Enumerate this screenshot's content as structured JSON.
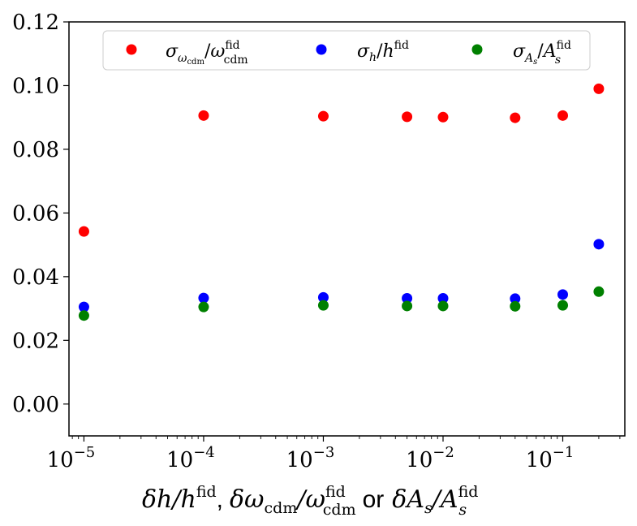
{
  "chart_data": {
    "type": "scatter",
    "title": "",
    "xlabel": "δh/h^fid, δω_cdm/ω_cdm^fid or δA_s/A_s^fid",
    "ylabel": "",
    "xscale": "log",
    "xlim": [
      7.5e-06,
      0.33
    ],
    "ylim": [
      -0.01,
      0.12
    ],
    "x": [
      1e-05,
      0.0001,
      0.001,
      0.005,
      0.01,
      0.04,
      0.1,
      0.2
    ],
    "x_ticks": [
      1e-05,
      0.0001,
      0.001,
      0.01,
      0.1
    ],
    "x_tick_labels": [
      {
        "base": "10",
        "exp": "−5"
      },
      {
        "base": "10",
        "exp": "−4"
      },
      {
        "base": "10",
        "exp": "−3"
      },
      {
        "base": "10",
        "exp": "−2"
      },
      {
        "base": "10",
        "exp": "−1"
      }
    ],
    "y_ticks": [
      0.0,
      0.02,
      0.04,
      0.06,
      0.08,
      0.1,
      0.12
    ],
    "y_tick_labels": [
      "0.00",
      "0.02",
      "0.04",
      "0.06",
      "0.08",
      "0.10",
      "0.12"
    ],
    "legend_position": "top",
    "series": [
      {
        "name": "σ_ωcdm/ω_cdm^fid",
        "color": "#ff0000",
        "values": [
          0.0542,
          0.0906,
          0.0904,
          0.0902,
          0.0901,
          0.0899,
          0.0906,
          0.099
        ]
      },
      {
        "name": "σ_h/h^fid",
        "color": "#0000ff",
        "values": [
          0.0305,
          0.0333,
          0.0335,
          0.0332,
          0.0332,
          0.0331,
          0.0344,
          0.0502
        ]
      },
      {
        "name": "σ_As/A_s^fid",
        "color": "#008000",
        "values": [
          0.0278,
          0.0305,
          0.031,
          0.0308,
          0.0308,
          0.0307,
          0.031,
          0.0353
        ]
      }
    ]
  },
  "legend": {
    "entries": [
      {
        "main": "σ",
        "sub": "ω",
        "subsub": "cdm",
        "slash": "/",
        "var": "ω",
        "sup": "fid",
        "sub2": "cdm"
      },
      {
        "main": "σ",
        "sub": "h",
        "slash": "/",
        "var": "h",
        "sup": "fid"
      },
      {
        "main": "σ",
        "sub": "A",
        "subsub": "s",
        "slash": "/",
        "var": "A",
        "sup": "fid",
        "sub2": "s"
      }
    ]
  },
  "xaxis_label": {
    "part1_var": "δh/h",
    "part1_sup": "fid",
    "comma": ",",
    "part2_var": "δω",
    "part2_sub": "cdm",
    "part2_slash": "/ω",
    "part2_sup": "fid",
    "part2_sub2": "cdm",
    "connector": "or",
    "part3_var": "δA",
    "part3_sub": "s",
    "part3_slash": "/A",
    "part3_sup": "fid",
    "part3_sub2": "s"
  }
}
